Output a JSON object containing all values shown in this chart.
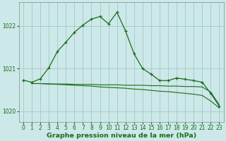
{
  "background_color": "#cce8e8",
  "grid_color": "#aacccc",
  "line_color": "#1a6b1a",
  "title": "Graphe pression niveau de la mer (hPa)",
  "xlim": [
    -0.5,
    23.5
  ],
  "ylim": [
    1019.75,
    1022.55
  ],
  "yticks": [
    1020,
    1021,
    1022
  ],
  "xticks": [
    0,
    1,
    2,
    3,
    4,
    5,
    6,
    7,
    8,
    9,
    10,
    11,
    12,
    13,
    14,
    15,
    16,
    17,
    18,
    19,
    20,
    21,
    22,
    23
  ],
  "series1_x": [
    0,
    1,
    2,
    3,
    4,
    5,
    6,
    7,
    8,
    9,
    10,
    11,
    12,
    13,
    14,
    15,
    16,
    17,
    18,
    19,
    20,
    21,
    22,
    23
  ],
  "series1_y": [
    1020.73,
    1020.68,
    1020.76,
    1021.02,
    1021.4,
    1021.62,
    1021.85,
    1022.02,
    1022.16,
    1022.22,
    1022.05,
    1022.32,
    1021.88,
    1021.35,
    1021.0,
    1020.87,
    1020.72,
    1020.72,
    1020.78,
    1020.75,
    1020.72,
    1020.68,
    1020.42,
    1020.12
  ],
  "series2_x": [
    1,
    2,
    3,
    4,
    5,
    6,
    7,
    8,
    9,
    10,
    11,
    12,
    13,
    14,
    15,
    16,
    17,
    18,
    19,
    20,
    21,
    22,
    23
  ],
  "series2_y": [
    1020.65,
    1020.65,
    1020.64,
    1020.64,
    1020.64,
    1020.63,
    1020.63,
    1020.63,
    1020.62,
    1020.62,
    1020.62,
    1020.61,
    1020.61,
    1020.61,
    1020.6,
    1020.6,
    1020.59,
    1020.59,
    1020.58,
    1020.58,
    1020.57,
    1020.45,
    1020.15
  ],
  "series3_x": [
    1,
    2,
    3,
    4,
    5,
    6,
    7,
    8,
    9,
    10,
    11,
    12,
    13,
    14,
    15,
    16,
    17,
    18,
    19,
    20,
    21,
    22,
    23
  ],
  "series3_y": [
    1020.65,
    1020.65,
    1020.64,
    1020.63,
    1020.62,
    1020.61,
    1020.6,
    1020.59,
    1020.57,
    1020.56,
    1020.55,
    1020.54,
    1020.52,
    1020.51,
    1020.49,
    1020.47,
    1020.46,
    1020.44,
    1020.42,
    1020.4,
    1020.37,
    1020.24,
    1020.08
  ],
  "title_fontsize": 6.8,
  "tick_fontsize": 5.5
}
